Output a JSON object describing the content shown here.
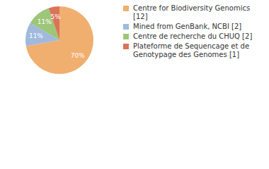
{
  "chart_data": {
    "type": "pie",
    "categories": [
      "Centre for Biodiversity Genomics [12]",
      "Mined from GenBank, NCBI [2]",
      "Centre de recherche du CHUQ [2]",
      "Plateforme de Sequencage et de Genotypage des Genomes [1]"
    ],
    "values": [
      70,
      11,
      11,
      5
    ],
    "value_labels": [
      "70%",
      "11%",
      "11%",
      "5%"
    ],
    "colors": [
      "#f0ae6f",
      "#a1b9dd",
      "#9dc679",
      "#da7458"
    ],
    "data_labels": true,
    "legend": "right"
  }
}
